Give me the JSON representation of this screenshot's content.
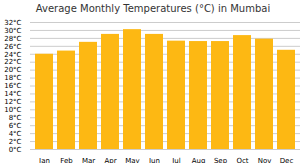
{
  "chart_data": {
    "type": "bar",
    "title": "Average Monthly Temperatures (°C) in Mumbai",
    "categories": [
      "Jan",
      "Feb",
      "Mar",
      "Apr",
      "May",
      "Jun",
      "Jul",
      "Aug",
      "Sep",
      "Oct",
      "Nov",
      "Dec"
    ],
    "values": [
      24.0,
      24.8,
      27.0,
      29.0,
      30.2,
      29.0,
      27.3,
      27.2,
      27.2,
      28.7,
      27.8,
      25.0
    ],
    "color": "#FDB813",
    "ylim": [
      0,
      32
    ],
    "yticks": [
      {
        "value": 0,
        "label": "0°C"
      },
      {
        "value": 2,
        "label": "2°C"
      },
      {
        "value": 4,
        "label": "4°C"
      },
      {
        "value": 6,
        "label": "6°C"
      },
      {
        "value": 8,
        "label": "8°C"
      },
      {
        "value": 10,
        "label": "10°C"
      },
      {
        "value": 12,
        "label": "12°C"
      },
      {
        "value": 14,
        "label": "14°C"
      },
      {
        "value": 16,
        "label": "16°C"
      },
      {
        "value": 18,
        "label": "18°C"
      },
      {
        "value": 20,
        "label": "20°C"
      },
      {
        "value": 22,
        "label": "22°C"
      },
      {
        "value": 24,
        "label": "24°C"
      },
      {
        "value": 26,
        "label": "26°C"
      },
      {
        "value": 28,
        "label": "28°C"
      },
      {
        "value": 30,
        "label": "30°C"
      },
      {
        "value": 32,
        "label": "32°C"
      }
    ],
    "grid": true
  }
}
